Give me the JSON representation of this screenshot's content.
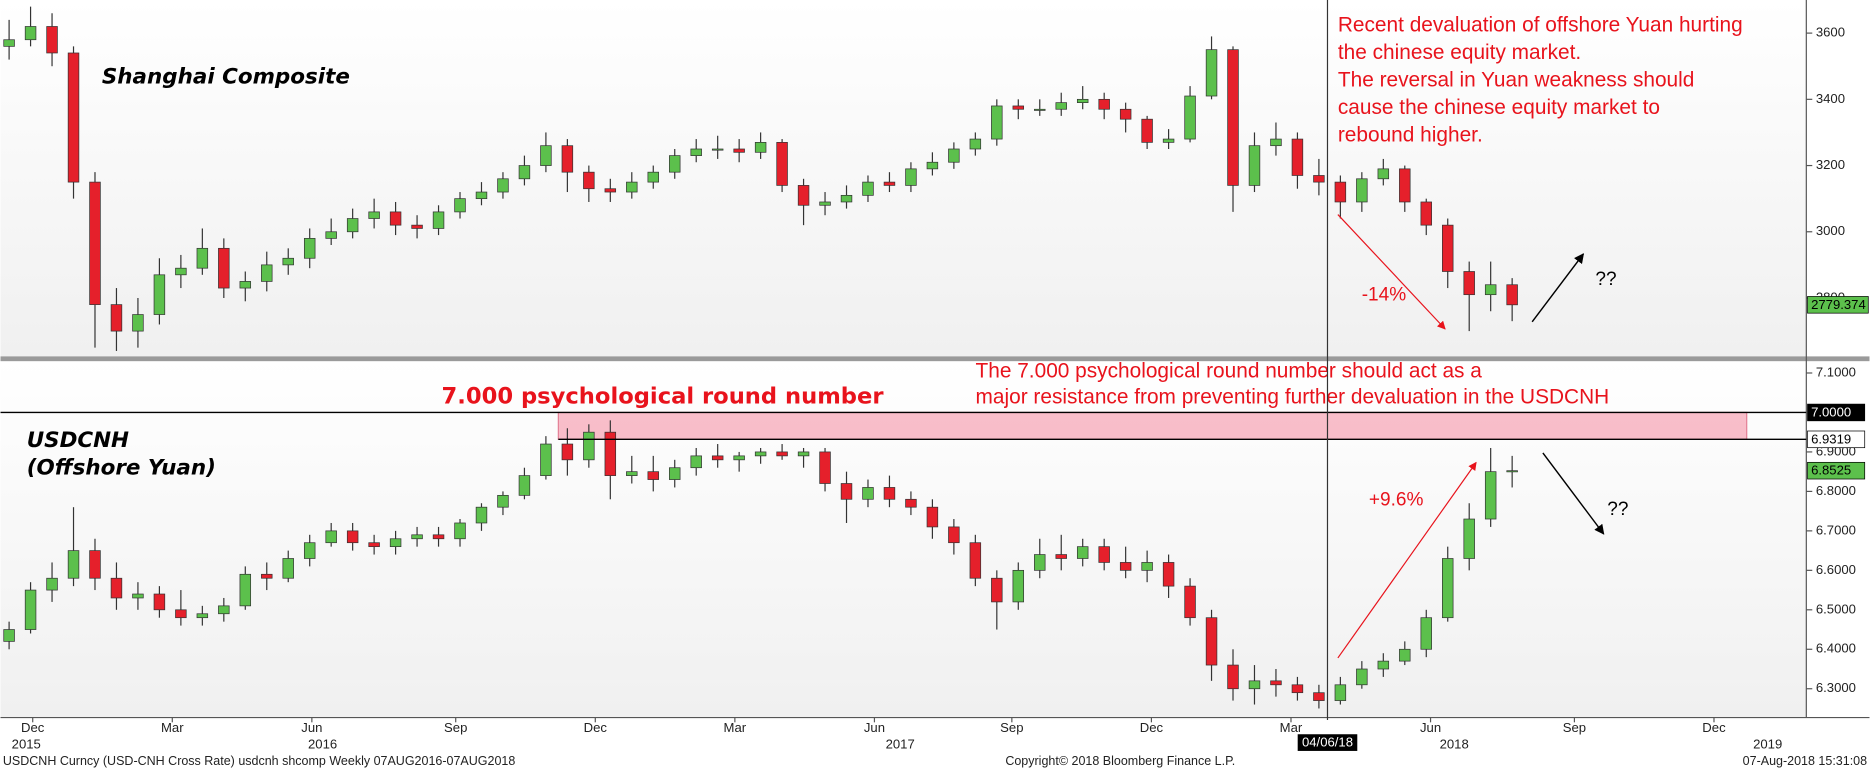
{
  "chart_data": [
    {
      "type": "candlestick",
      "title": "Shanghai Composite",
      "note_lines": [
        "Recent devaluation of offshore Yuan hurting",
        "the chinese equity market.",
        "The reversal in Yuan weakness should",
        "cause the chinese equity market to",
        "rebound higher."
      ],
      "change_label": "-14%",
      "outlook_label": "??",
      "up_color": "#5cc04c",
      "down_color": "#e5202b",
      "last_tag_color": "#5cc04c",
      "xlim": [
        -0.4,
        83.7
      ],
      "ylim": [
        2620,
        3700
      ],
      "yticks": [
        2800,
        3000,
        3200,
        3400,
        3600
      ],
      "open": [
        3560,
        3580,
        3620,
        3540,
        3150,
        2780,
        2700,
        2750,
        2870,
        2890,
        2950,
        2830,
        2850,
        2900,
        2920,
        2980,
        3000,
        3040,
        3060,
        3020,
        3010,
        3060,
        3100,
        3120,
        3160,
        3200,
        3260,
        3180,
        3130,
        3120,
        3150,
        3180,
        3230,
        3250,
        3250,
        3240,
        3270,
        3140,
        3080,
        3090,
        3110,
        3150,
        3140,
        3190,
        3210,
        3250,
        3280,
        3380,
        3370,
        3370,
        3390,
        3400,
        3370,
        3340,
        3270,
        3280,
        3410,
        3550,
        3140,
        3260,
        3280,
        3170,
        3150,
        3090,
        3160,
        3190,
        3090,
        3020,
        2880,
        2810,
        2840
      ],
      "high": [
        3640,
        3680,
        3660,
        3560,
        3180,
        2830,
        2800,
        2920,
        2930,
        3010,
        2980,
        2880,
        2940,
        2950,
        3010,
        3040,
        3070,
        3100,
        3090,
        3050,
        3080,
        3120,
        3150,
        3180,
        3230,
        3300,
        3280,
        3200,
        3160,
        3180,
        3200,
        3250,
        3280,
        3290,
        3280,
        3300,
        3280,
        3160,
        3120,
        3140,
        3170,
        3180,
        3210,
        3240,
        3270,
        3300,
        3400,
        3400,
        3400,
        3420,
        3440,
        3420,
        3390,
        3350,
        3310,
        3440,
        3590,
        3560,
        3300,
        3330,
        3300,
        3220,
        3170,
        3180,
        3220,
        3200,
        3100,
        3040,
        2910,
        2910,
        2860
      ],
      "low": [
        3520,
        3560,
        3500,
        3100,
        2650,
        2640,
        2650,
        2720,
        2830,
        2870,
        2800,
        2790,
        2820,
        2870,
        2890,
        2960,
        2980,
        3010,
        2990,
        2980,
        2990,
        3040,
        3080,
        3100,
        3140,
        3180,
        3120,
        3090,
        3090,
        3100,
        3130,
        3160,
        3210,
        3220,
        3210,
        3220,
        3120,
        3020,
        3050,
        3070,
        3090,
        3120,
        3120,
        3170,
        3190,
        3230,
        3260,
        3340,
        3350,
        3350,
        3370,
        3340,
        3300,
        3250,
        3250,
        3270,
        3400,
        3060,
        3120,
        3230,
        3130,
        3110,
        3040,
        3060,
        3140,
        3060,
        2990,
        2830,
        2700,
        2760,
        2730
      ],
      "close": [
        3580,
        3620,
        3540,
        3150,
        2780,
        2700,
        2750,
        2870,
        2890,
        2950,
        2830,
        2850,
        2900,
        2920,
        2980,
        3000,
        3040,
        3060,
        3020,
        3010,
        3060,
        3100,
        3120,
        3160,
        3200,
        3260,
        3180,
        3130,
        3120,
        3150,
        3180,
        3230,
        3250,
        3250,
        3240,
        3270,
        3140,
        3080,
        3090,
        3110,
        3150,
        3140,
        3190,
        3210,
        3250,
        3280,
        3380,
        3370,
        3370,
        3390,
        3400,
        3370,
        3340,
        3270,
        3280,
        3410,
        3550,
        3140,
        3260,
        3280,
        3170,
        3150,
        3090,
        3160,
        3190,
        3090,
        3020,
        2880,
        2810,
        2840,
        2779.374
      ]
    },
    {
      "type": "candlestick",
      "title": "USDCNH",
      "subtitle": "(Offshore Yuan)",
      "level_title": "7.000 psychological round number",
      "note_lines": [
        "The 7.000 psychological round number should act as a",
        "major resistance from preventing further devaluation in the USDCNH"
      ],
      "change_label": "+9.6%",
      "outlook_label": "??",
      "up_color": "#5cc04c",
      "down_color": "#e5202b",
      "last_tag_color": "#5cc04c",
      "levels": [
        {
          "value": 7.0,
          "label": "7.0000",
          "color": "#000000",
          "text_color": "#ffffff"
        },
        {
          "value": 6.9319,
          "label": "6.9319",
          "color": "#ffffff",
          "text_color": "#000000"
        }
      ],
      "band_color": "#f7a8b8",
      "xlim": [
        -0.4,
        83.7
      ],
      "ylim": [
        6.227,
        7.133
      ],
      "yticks": [
        {
          "value": 6.3,
          "label": "6.3000"
        },
        {
          "value": 6.4,
          "label": "6.4000"
        },
        {
          "value": 6.5,
          "label": "6.5000"
        },
        {
          "value": 6.6,
          "label": "6.6000"
        },
        {
          "value": 6.7,
          "label": "6.7000"
        },
        {
          "value": 6.8,
          "label": "6.8000"
        },
        {
          "value": 6.9,
          "label": "6.9000"
        },
        {
          "value": 7.1,
          "label": "7.1000"
        }
      ],
      "xticks": [
        {
          "value": 1.1,
          "label": "Dec"
        },
        {
          "value": 7.6,
          "label": "Mar"
        },
        {
          "value": 14.1,
          "label": "Jun"
        },
        {
          "value": 20.8,
          "label": "Sep"
        },
        {
          "value": 27.3,
          "label": "Dec"
        },
        {
          "value": 33.8,
          "label": "Mar"
        },
        {
          "value": 40.3,
          "label": "Jun"
        },
        {
          "value": 46.7,
          "label": "Sep"
        },
        {
          "value": 53.2,
          "label": "Dec"
        },
        {
          "value": 59.7,
          "label": "Mar"
        },
        {
          "value": 66.2,
          "label": "Jun"
        },
        {
          "value": 72.9,
          "label": "Sep"
        },
        {
          "value": 79.4,
          "label": "Dec"
        }
      ],
      "year_ticks": [
        {
          "value": 0.8,
          "label": "2015"
        },
        {
          "value": 14.6,
          "label": "2016"
        },
        {
          "value": 41.5,
          "label": "2017"
        },
        {
          "value": 67.3,
          "label": "2018"
        },
        {
          "value": 81.9,
          "label": "2019"
        }
      ],
      "marker": {
        "x": 61.4,
        "label": "04/06/18"
      },
      "open": [
        6.42,
        6.45,
        6.55,
        6.58,
        6.65,
        6.58,
        6.53,
        6.54,
        6.5,
        6.48,
        6.49,
        6.51,
        6.59,
        6.58,
        6.63,
        6.67,
        6.7,
        6.67,
        6.66,
        6.68,
        6.69,
        6.68,
        6.72,
        6.76,
        6.79,
        6.84,
        6.92,
        6.88,
        6.95,
        6.84,
        6.85,
        6.83,
        6.86,
        6.89,
        6.88,
        6.89,
        6.9,
        6.89,
        6.9,
        6.82,
        6.78,
        6.81,
        6.78,
        6.76,
        6.71,
        6.67,
        6.58,
        6.52,
        6.6,
        6.64,
        6.63,
        6.66,
        6.62,
        6.6,
        6.62,
        6.56,
        6.48,
        6.36,
        6.3,
        6.32,
        6.31,
        6.29,
        6.27,
        6.31,
        6.35,
        6.37,
        6.4,
        6.48,
        6.63,
        6.73,
        6.85
      ],
      "high": [
        6.47,
        6.57,
        6.62,
        6.76,
        6.68,
        6.62,
        6.57,
        6.56,
        6.55,
        6.51,
        6.53,
        6.61,
        6.62,
        6.65,
        6.69,
        6.72,
        6.72,
        6.69,
        6.7,
        6.71,
        6.71,
        6.73,
        6.77,
        6.8,
        6.86,
        6.94,
        6.96,
        6.97,
        6.98,
        6.89,
        6.89,
        6.88,
        6.91,
        6.92,
        6.9,
        6.91,
        6.92,
        6.91,
        6.91,
        6.85,
        6.83,
        6.84,
        6.8,
        6.78,
        6.73,
        6.69,
        6.6,
        6.62,
        6.68,
        6.69,
        6.68,
        6.68,
        6.66,
        6.65,
        6.64,
        6.58,
        6.5,
        6.4,
        6.36,
        6.35,
        6.33,
        6.31,
        6.33,
        6.37,
        6.39,
        6.42,
        6.5,
        6.66,
        6.77,
        6.91,
        6.89
      ],
      "low": [
        6.4,
        6.44,
        6.52,
        6.56,
        6.55,
        6.5,
        6.5,
        6.48,
        6.46,
        6.46,
        6.47,
        6.5,
        6.55,
        6.57,
        6.61,
        6.66,
        6.65,
        6.64,
        6.64,
        6.66,
        6.66,
        6.66,
        6.7,
        6.74,
        6.78,
        6.83,
        6.84,
        6.86,
        6.78,
        6.82,
        6.8,
        6.81,
        6.84,
        6.86,
        6.85,
        6.87,
        6.88,
        6.86,
        6.8,
        6.72,
        6.76,
        6.76,
        6.74,
        6.68,
        6.64,
        6.56,
        6.45,
        6.5,
        6.58,
        6.6,
        6.61,
        6.6,
        6.58,
        6.57,
        6.53,
        6.46,
        6.32,
        6.27,
        6.26,
        6.28,
        6.27,
        6.25,
        6.26,
        6.3,
        6.33,
        6.36,
        6.38,
        6.47,
        6.6,
        6.71,
        6.81
      ],
      "close": [
        6.45,
        6.55,
        6.58,
        6.65,
        6.58,
        6.53,
        6.54,
        6.5,
        6.48,
        6.49,
        6.51,
        6.59,
        6.58,
        6.63,
        6.67,
        6.7,
        6.67,
        6.66,
        6.68,
        6.69,
        6.68,
        6.72,
        6.76,
        6.79,
        6.84,
        6.92,
        6.88,
        6.95,
        6.84,
        6.85,
        6.83,
        6.86,
        6.89,
        6.88,
        6.89,
        6.9,
        6.89,
        6.9,
        6.82,
        6.78,
        6.81,
        6.78,
        6.76,
        6.71,
        6.67,
        6.58,
        6.52,
        6.6,
        6.64,
        6.63,
        6.66,
        6.62,
        6.6,
        6.62,
        6.56,
        6.48,
        6.36,
        6.3,
        6.32,
        6.31,
        6.29,
        6.27,
        6.31,
        6.35,
        6.37,
        6.4,
        6.48,
        6.63,
        6.73,
        6.85,
        6.8525
      ]
    }
  ],
  "footer": {
    "left": "USDCNH Curncy (USD-CNH Cross Rate) usdcnh shcomp  Weekly 07AUG2016-07AUG2018",
    "center": "Copyright© 2018 Bloomberg Finance L.P.",
    "right": "07-Aug-2018 15:31:08"
  }
}
